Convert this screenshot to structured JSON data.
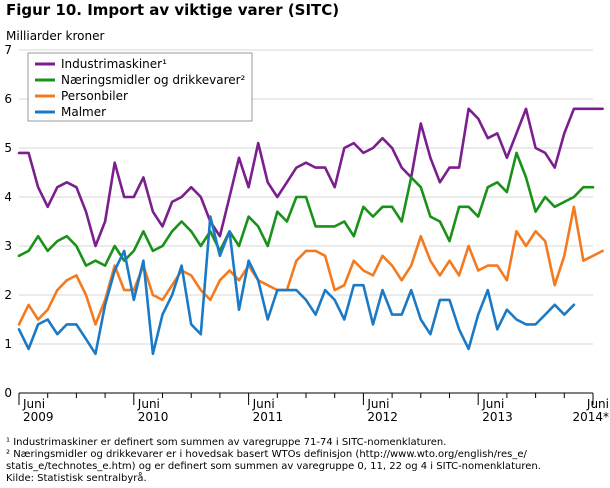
{
  "chart_data": {
    "type": "line",
    "title": "Figur 10. Import av viktige varer (SITC)",
    "ylabel": "Milliarder kroner",
    "xlabel": "",
    "ylim": [
      0,
      7
    ],
    "yticks": [
      0,
      1,
      2,
      3,
      4,
      5,
      6,
      7
    ],
    "grid": true,
    "legend_position": "top-left",
    "x_tick_labels": [
      {
        "index": 0,
        "lines": [
          "Juni",
          "2009"
        ]
      },
      {
        "index": 12,
        "lines": [
          "Juni",
          "2010"
        ]
      },
      {
        "index": 24,
        "lines": [
          "Juni",
          "2011"
        ]
      },
      {
        "index": 36,
        "lines": [
          "Juni",
          "2012"
        ]
      },
      {
        "index": 48,
        "lines": [
          "Juni",
          "2013"
        ]
      },
      {
        "index": 60,
        "lines": [
          "Juni",
          "2014*"
        ]
      }
    ],
    "series": [
      {
        "name": "Industrimaskiner¹",
        "color": "#7b1f8e",
        "values": [
          4.9,
          4.9,
          4.2,
          3.8,
          4.2,
          4.3,
          4.2,
          3.7,
          3.0,
          3.5,
          4.7,
          4.0,
          4.0,
          4.4,
          3.7,
          3.4,
          3.9,
          4.0,
          4.2,
          4.0,
          3.5,
          3.2,
          4.0,
          4.8,
          4.2,
          5.1,
          4.3,
          4.0,
          4.3,
          4.6,
          4.7,
          4.6,
          4.6,
          4.2,
          5.0,
          5.1,
          4.9,
          5.0,
          5.2,
          5.0,
          4.6,
          4.4,
          5.5,
          4.8,
          4.3,
          4.6,
          4.6,
          5.8,
          5.6,
          5.2,
          5.3,
          4.8,
          5.3,
          5.8,
          5.0,
          4.9,
          4.6,
          5.3,
          5.8,
          5.8,
          5.8,
          5.8
        ]
      },
      {
        "name": "Næringsmidler og drikkevarer²",
        "color": "#1a9219",
        "values": [
          2.8,
          2.9,
          3.2,
          2.9,
          3.1,
          3.2,
          3.0,
          2.6,
          2.7,
          2.6,
          3.0,
          2.7,
          2.9,
          3.3,
          2.9,
          3.0,
          3.3,
          3.5,
          3.3,
          3.0,
          3.3,
          2.9,
          3.3,
          3.0,
          3.6,
          3.4,
          3.0,
          3.7,
          3.5,
          4.0,
          4.0,
          3.4,
          3.4,
          3.4,
          3.5,
          3.2,
          3.8,
          3.6,
          3.8,
          3.8,
          3.5,
          4.4,
          4.2,
          3.6,
          3.5,
          3.1,
          3.8,
          3.8,
          3.6,
          4.2,
          4.3,
          4.1,
          4.9,
          4.4,
          3.7,
          4.0,
          3.8,
          3.9,
          4.0,
          4.2,
          4.2
        ]
      },
      {
        "name": "Personbiler",
        "color": "#f47a20",
        "values": [
          1.4,
          1.8,
          1.5,
          1.7,
          2.1,
          2.3,
          2.4,
          2.0,
          1.4,
          1.9,
          2.6,
          2.1,
          2.1,
          2.6,
          2.0,
          1.9,
          2.2,
          2.5,
          2.4,
          2.1,
          1.9,
          2.3,
          2.5,
          2.3,
          2.6,
          2.3,
          2.2,
          2.1,
          2.1,
          2.7,
          2.9,
          2.9,
          2.8,
          2.1,
          2.2,
          2.7,
          2.5,
          2.4,
          2.8,
          2.6,
          2.3,
          2.6,
          3.2,
          2.7,
          2.4,
          2.7,
          2.4,
          3.0,
          2.5,
          2.6,
          2.6,
          2.3,
          3.3,
          3.0,
          3.3,
          3.1,
          2.2,
          2.8,
          3.8,
          2.7,
          2.8,
          2.9
        ]
      },
      {
        "name": "Malmer",
        "color": "#1b7ac6",
        "values": [
          1.3,
          0.9,
          1.4,
          1.5,
          1.2,
          1.4,
          1.4,
          1.1,
          0.8,
          1.8,
          2.5,
          2.9,
          1.9,
          2.7,
          0.8,
          1.6,
          2.0,
          2.6,
          1.4,
          1.2,
          3.6,
          2.8,
          3.3,
          1.7,
          2.7,
          2.3,
          1.5,
          2.1,
          2.1,
          2.1,
          1.9,
          1.6,
          2.1,
          1.9,
          1.5,
          2.2,
          2.2,
          1.4,
          2.1,
          1.6,
          1.6,
          2.1,
          1.5,
          1.2,
          1.9,
          1.9,
          1.3,
          0.9,
          1.6,
          2.1,
          1.3,
          1.7,
          1.5,
          1.4,
          1.4,
          1.6,
          1.8,
          1.6,
          1.8
        ]
      }
    ]
  },
  "footnotes": {
    "line1": "¹ Industrimaskiner er definert som summen av varegruppe 71-74 i SITC-nomenklaturen.",
    "line2": "² Næringsmidler og drikkevarer er i hovedsak basert WTOs definisjon (http://www.wto.org/english/res_e/",
    "line3": "statis_e/technotes_e.htm) og er definert som summen av varegruppe 0, 11, 22 og 4 i SITC-nomenklaturen.",
    "source": "Kilde: Statistisk sentralbyrå."
  }
}
